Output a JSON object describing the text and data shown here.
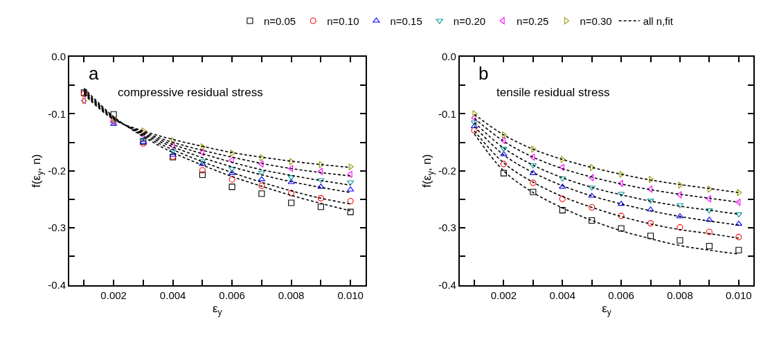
{
  "chart_data": [
    {
      "type": "scatter",
      "xlabel": "ε$_{y}$",
      "ylabel": "f(ε$_{y}$, n)",
      "annotations": [
        "a",
        "compressive residual stress"
      ],
      "x": [
        0.001,
        0.002,
        0.003,
        0.004,
        0.005,
        0.006,
        0.007,
        0.008,
        0.009,
        0.01
      ],
      "xlim": [
        0.0005,
        0.0105
      ],
      "ylim": [
        -0.4,
        0.0
      ],
      "xticks": [
        {
          "value": 0.001,
          "label": null
        },
        0.002,
        {
          "value": 0.003,
          "label": null
        },
        0.004,
        {
          "value": 0.005,
          "label": null
        },
        0.006,
        {
          "value": 0.007,
          "label": null
        },
        0.008,
        {
          "value": 0.009,
          "label": null
        },
        "0.010"
      ],
      "yticks": [
        {
          "value": 0.0,
          "label": "0.0"
        },
        {
          "value": -0.05,
          "label": null
        },
        -0.1,
        {
          "value": -0.15,
          "label": null
        },
        -0.2,
        {
          "value": -0.25,
          "label": null
        },
        -0.3,
        {
          "value": -0.35,
          "label": null
        },
        -0.4
      ],
      "legend": "top",
      "series": [
        {
          "name": "n=0.05",
          "color": "#000000",
          "marker": "square",
          "values": [
            -0.063,
            -0.101,
            -0.149,
            -0.176,
            -0.207,
            -0.228,
            -0.24,
            -0.256,
            -0.263,
            -0.272
          ]
        },
        {
          "name": "n=0.10",
          "color": "#ff0000",
          "marker": "circle",
          "values": [
            -0.065,
            -0.112,
            -0.152,
            -0.175,
            -0.199,
            -0.215,
            -0.226,
            -0.239,
            -0.248,
            -0.253
          ]
        },
        {
          "name": "n=0.15",
          "color": "#0000ff",
          "marker": "triangle-up",
          "values": [
            null,
            -0.118,
            -0.15,
            -0.172,
            -0.188,
            -0.204,
            -0.215,
            -0.22,
            -0.228,
            -0.233
          ]
        },
        {
          "name": "n=0.20",
          "color": "#009999",
          "marker": "triangle-down",
          "values": [
            null,
            -0.116,
            -0.145,
            -0.165,
            -0.183,
            -0.196,
            -0.203,
            -0.211,
            -0.216,
            -0.22
          ]
        },
        {
          "name": "n=0.25",
          "color": "#ff00ff",
          "marker": "triangle-left",
          "values": [
            -0.077,
            -0.114,
            -0.137,
            -0.156,
            -0.168,
            -0.181,
            -0.188,
            -0.196,
            -0.201,
            -0.206
          ]
        },
        {
          "name": "n=0.30",
          "color": "#999900",
          "marker": "triangle-right",
          "values": [
            -0.077,
            -0.11,
            -0.13,
            -0.147,
            -0.158,
            -0.169,
            -0.177,
            -0.184,
            -0.189,
            -0.193
          ]
        },
        {
          "name": "all n,fit",
          "type": "line",
          "color": "#000000",
          "marker": "none",
          "line_style": "dashed",
          "values": [
            -0.055,
            -0.105,
            -0.14,
            -0.168,
            -0.19,
            -0.21,
            -0.227,
            -0.243,
            -0.257,
            -0.27
          ]
        },
        {
          "type": "line",
          "color": "#000000",
          "marker": "none",
          "line_style": "dashed",
          "values": [
            -0.058,
            -0.106,
            -0.138,
            -0.163,
            -0.184,
            -0.203,
            -0.22,
            -0.235,
            -0.248,
            -0.258
          ]
        },
        {
          "type": "line",
          "color": "#000000",
          "marker": "none",
          "line_style": "dashed",
          "values": [
            -0.06,
            -0.107,
            -0.136,
            -0.158,
            -0.177,
            -0.193,
            -0.207,
            -0.219,
            -0.229,
            -0.238
          ]
        },
        {
          "type": "line",
          "color": "#000000",
          "marker": "none",
          "line_style": "dashed",
          "values": [
            -0.062,
            -0.108,
            -0.134,
            -0.154,
            -0.17,
            -0.185,
            -0.198,
            -0.208,
            -0.217,
            -0.225
          ]
        },
        {
          "type": "line",
          "color": "#000000",
          "marker": "none",
          "line_style": "dashed",
          "values": [
            -0.064,
            -0.109,
            -0.132,
            -0.15,
            -0.164,
            -0.176,
            -0.187,
            -0.196,
            -0.203,
            -0.209
          ]
        },
        {
          "type": "line",
          "color": "#000000",
          "marker": "none",
          "line_style": "dashed",
          "values": [
            -0.066,
            -0.11,
            -0.13,
            -0.145,
            -0.157,
            -0.168,
            -0.176,
            -0.183,
            -0.189,
            -0.194
          ]
        }
      ]
    },
    {
      "type": "scatter",
      "xlabel": "ε$_{y}$",
      "ylabel": "f(ε$_{y}$, n)",
      "annotations": [
        "b",
        "tensile residual stress"
      ],
      "x": [
        0.001,
        0.002,
        0.003,
        0.004,
        0.005,
        0.006,
        0.007,
        0.008,
        0.009,
        0.01
      ],
      "xlim": [
        0.0005,
        0.0105
      ],
      "ylim": [
        -0.4,
        0.0
      ],
      "xticks": [
        {
          "value": 0.001,
          "label": null
        },
        0.002,
        {
          "value": 0.003,
          "label": null
        },
        0.004,
        {
          "value": 0.005,
          "label": null
        },
        0.006,
        {
          "value": 0.007,
          "label": null
        },
        0.008,
        {
          "value": 0.009,
          "label": null
        },
        "0.010"
      ],
      "yticks": [
        {
          "value": 0.0,
          "label": "0.0"
        },
        {
          "value": -0.05,
          "label": null
        },
        -0.1,
        {
          "value": -0.15,
          "label": null
        },
        -0.2,
        {
          "value": -0.25,
          "label": null
        },
        -0.3,
        {
          "value": -0.35,
          "label": null
        },
        -0.4
      ],
      "series": [
        {
          "color": "#000000",
          "marker": "square",
          "values": [
            null,
            -0.204,
            -0.237,
            -0.269,
            -0.287,
            -0.301,
            -0.314,
            -0.322,
            -0.332,
            -0.339
          ]
        },
        {
          "color": "#ff0000",
          "marker": "circle",
          "values": [
            -0.129,
            -0.188,
            -0.221,
            -0.249,
            -0.264,
            -0.279,
            -0.292,
            -0.299,
            -0.307,
            -0.316
          ]
        },
        {
          "color": "#0000ff",
          "marker": "triangle-up",
          "values": [
            -0.122,
            -0.171,
            -0.204,
            -0.228,
            -0.244,
            -0.258,
            -0.268,
            -0.28,
            -0.286,
            -0.293
          ]
        },
        {
          "color": "#009999",
          "marker": "triangle-down",
          "values": [
            -0.115,
            -0.161,
            -0.19,
            -0.213,
            -0.229,
            -0.24,
            -0.252,
            -0.26,
            -0.269,
            -0.276
          ]
        },
        {
          "color": "#ff00ff",
          "marker": "triangle-left",
          "values": [
            -0.107,
            -0.147,
            -0.176,
            -0.194,
            -0.212,
            -0.222,
            -0.232,
            -0.242,
            -0.249,
            -0.255
          ]
        },
        {
          "color": "#999900",
          "marker": "triangle-right",
          "values": [
            -0.1,
            -0.137,
            -0.162,
            -0.18,
            -0.194,
            -0.206,
            -0.215,
            -0.225,
            -0.232,
            -0.238
          ]
        },
        {
          "type": "line",
          "color": "#000000",
          "marker": "none",
          "line_style": "dashed",
          "values": [
            -0.135,
            -0.2,
            -0.238,
            -0.265,
            -0.287,
            -0.305,
            -0.319,
            -0.331,
            -0.339,
            -0.346
          ]
        },
        {
          "type": "line",
          "color": "#000000",
          "marker": "none",
          "line_style": "dashed",
          "values": [
            -0.13,
            -0.186,
            -0.22,
            -0.245,
            -0.264,
            -0.28,
            -0.293,
            -0.303,
            -0.31,
            -0.318
          ]
        },
        {
          "type": "line",
          "color": "#000000",
          "marker": "none",
          "line_style": "dashed",
          "values": [
            -0.122,
            -0.172,
            -0.203,
            -0.226,
            -0.244,
            -0.258,
            -0.27,
            -0.28,
            -0.288,
            -0.295
          ]
        },
        {
          "type": "line",
          "color": "#000000",
          "marker": "none",
          "line_style": "dashed",
          "values": [
            -0.115,
            -0.16,
            -0.19,
            -0.212,
            -0.229,
            -0.242,
            -0.253,
            -0.262,
            -0.269,
            -0.276
          ]
        },
        {
          "type": "line",
          "color": "#000000",
          "marker": "none",
          "line_style": "dashed",
          "values": [
            -0.108,
            -0.148,
            -0.176,
            -0.196,
            -0.211,
            -0.223,
            -0.233,
            -0.241,
            -0.248,
            -0.255
          ]
        },
        {
          "type": "line",
          "color": "#000000",
          "marker": "none",
          "line_style": "dashed",
          "values": [
            -0.101,
            -0.137,
            -0.162,
            -0.18,
            -0.194,
            -0.206,
            -0.216,
            -0.224,
            -0.231,
            -0.238
          ]
        }
      ]
    }
  ]
}
